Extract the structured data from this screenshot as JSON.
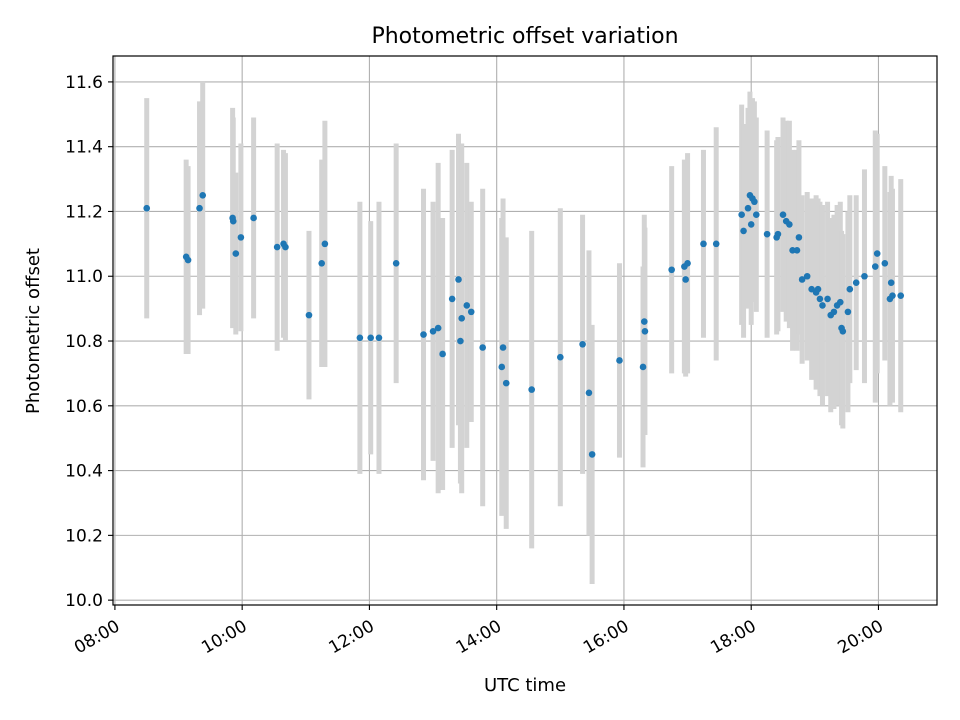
{
  "chart_data": {
    "type": "scatter",
    "title": "Photometric offset variation",
    "xlabel": "UTC time",
    "ylabel": "Photometric offset",
    "x_unit": "hours",
    "xlim": [
      7.97,
      20.92
    ],
    "ylim": [
      9.985,
      11.68
    ],
    "x_ticks": [
      {
        "value": 8,
        "label": "08:00"
      },
      {
        "value": 10,
        "label": "10:00"
      },
      {
        "value": 12,
        "label": "12:00"
      },
      {
        "value": 14,
        "label": "14:00"
      },
      {
        "value": 16,
        "label": "16:00"
      },
      {
        "value": 18,
        "label": "18:00"
      },
      {
        "value": 20,
        "label": "20:00"
      }
    ],
    "y_ticks": [
      {
        "value": 10.0,
        "label": "10.0"
      },
      {
        "value": 10.2,
        "label": "10.2"
      },
      {
        "value": 10.4,
        "label": "10.4"
      },
      {
        "value": 10.6,
        "label": "10.6"
      },
      {
        "value": 10.8,
        "label": "10.8"
      },
      {
        "value": 11.0,
        "label": "11.0"
      },
      {
        "value": 11.2,
        "label": "11.2"
      },
      {
        "value": 11.4,
        "label": "11.4"
      },
      {
        "value": 11.6,
        "label": "11.6"
      }
    ],
    "grid": true,
    "point_color": "#1f77b4",
    "errorbar_color": "#d3d3d3",
    "points": [
      [
        8.5,
        11.21,
        0.34
      ],
      [
        9.12,
        11.06,
        0.3
      ],
      [
        9.15,
        11.05,
        0.29
      ],
      [
        9.33,
        11.21,
        0.33
      ],
      [
        9.38,
        11.25,
        0.35
      ],
      [
        9.85,
        11.18,
        0.34
      ],
      [
        9.86,
        11.17,
        0.32
      ],
      [
        9.9,
        11.07,
        0.25
      ],
      [
        9.98,
        11.12,
        0.29
      ],
      [
        10.18,
        11.18,
        0.31
      ],
      [
        10.55,
        11.09,
        0.32
      ],
      [
        10.65,
        11.1,
        0.29
      ],
      [
        10.68,
        11.09,
        0.29
      ],
      [
        11.05,
        10.88,
        0.26
      ],
      [
        11.25,
        11.04,
        0.32
      ],
      [
        11.3,
        11.1,
        0.38
      ],
      [
        11.85,
        10.81,
        0.42
      ],
      [
        12.02,
        10.81,
        0.36
      ],
      [
        12.15,
        10.81,
        0.42
      ],
      [
        12.42,
        11.04,
        0.37
      ],
      [
        12.85,
        10.82,
        0.45
      ],
      [
        13.0,
        10.83,
        0.4
      ],
      [
        13.08,
        10.84,
        0.51
      ],
      [
        13.15,
        10.76,
        0.42
      ],
      [
        13.3,
        10.93,
        0.46
      ],
      [
        13.4,
        10.99,
        0.45
      ],
      [
        13.45,
        10.87,
        0.54
      ],
      [
        13.43,
        10.8,
        0.44
      ],
      [
        13.53,
        10.91,
        0.44
      ],
      [
        13.6,
        10.89,
        0.34
      ],
      [
        13.78,
        10.78,
        0.49
      ],
      [
        14.08,
        10.72,
        0.46
      ],
      [
        14.1,
        10.78,
        0.46
      ],
      [
        14.15,
        10.67,
        0.45
      ],
      [
        14.55,
        10.65,
        0.49
      ],
      [
        15.0,
        10.75,
        0.46
      ],
      [
        15.35,
        10.79,
        0.4
      ],
      [
        15.45,
        10.64,
        0.44
      ],
      [
        15.5,
        10.45,
        0.4
      ],
      [
        15.93,
        10.74,
        0.3
      ],
      [
        16.3,
        10.72,
        0.31
      ],
      [
        16.32,
        10.86,
        0.33
      ],
      [
        16.33,
        10.83,
        0.32
      ],
      [
        16.75,
        11.02,
        0.32
      ],
      [
        16.95,
        11.03,
        0.33
      ],
      [
        17.0,
        11.04,
        0.34
      ],
      [
        16.97,
        10.99,
        0.3
      ],
      [
        17.25,
        11.1,
        0.29
      ],
      [
        17.45,
        11.1,
        0.36
      ],
      [
        17.85,
        11.19,
        0.34
      ],
      [
        17.88,
        11.14,
        0.33
      ],
      [
        17.95,
        11.21,
        0.31
      ],
      [
        17.98,
        11.25,
        0.32
      ],
      [
        18.02,
        11.24,
        0.31
      ],
      [
        18.0,
        11.16,
        0.31
      ],
      [
        18.05,
        11.23,
        0.31
      ],
      [
        18.08,
        11.19,
        0.3
      ],
      [
        18.25,
        11.13,
        0.32
      ],
      [
        18.4,
        11.12,
        0.3
      ],
      [
        18.42,
        11.13,
        0.3
      ],
      [
        18.5,
        11.19,
        0.3
      ],
      [
        18.55,
        11.17,
        0.31
      ],
      [
        18.6,
        11.16,
        0.32
      ],
      [
        18.65,
        11.08,
        0.31
      ],
      [
        18.72,
        11.08,
        0.31
      ],
      [
        18.75,
        11.12,
        0.3
      ],
      [
        18.8,
        10.99,
        0.26
      ],
      [
        18.88,
        11.0,
        0.26
      ],
      [
        18.95,
        10.96,
        0.28
      ],
      [
        19.02,
        10.95,
        0.3
      ],
      [
        19.05,
        10.96,
        0.28
      ],
      [
        19.08,
        10.93,
        0.3
      ],
      [
        19.12,
        10.91,
        0.31
      ],
      [
        19.2,
        10.93,
        0.3
      ],
      [
        19.25,
        10.88,
        0.3
      ],
      [
        19.3,
        10.89,
        0.3
      ],
      [
        19.35,
        10.91,
        0.31
      ],
      [
        19.4,
        10.92,
        0.31
      ],
      [
        19.42,
        10.84,
        0.3
      ],
      [
        19.44,
        10.83,
        0.3
      ],
      [
        19.52,
        10.89,
        0.31
      ],
      [
        19.55,
        10.96,
        0.29
      ],
      [
        19.65,
        10.98,
        0.27
      ],
      [
        19.78,
        11.0,
        0.33
      ],
      [
        19.95,
        11.03,
        0.42
      ],
      [
        19.98,
        11.07,
        0.37
      ],
      [
        20.1,
        11.04,
        0.3
      ],
      [
        20.18,
        10.93,
        0.33
      ],
      [
        20.2,
        10.98,
        0.33
      ],
      [
        20.22,
        10.94,
        0.33
      ],
      [
        20.35,
        10.94,
        0.36
      ]
    ]
  }
}
